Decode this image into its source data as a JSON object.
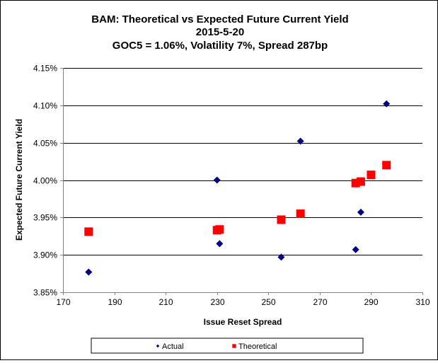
{
  "chart_data": {
    "type": "scatter",
    "title_lines": [
      "BAM: Theoretical vs Expected Future Current Yield",
      "2015-5-20",
      "GOC5 = 1.06%, Volatility 7%, Spread 287bp"
    ],
    "xlabel": "Issue Reset Spread",
    "ylabel": "Expected Future Current Yield",
    "xlim": [
      170,
      310
    ],
    "ylim": [
      3.85,
      4.15
    ],
    "x_ticks": [
      170,
      190,
      210,
      230,
      250,
      270,
      290,
      310
    ],
    "x_tick_labels": [
      "170",
      "190",
      "210",
      "230",
      "250",
      "270",
      "290",
      "310"
    ],
    "y_ticks": [
      3.85,
      3.9,
      3.95,
      4.0,
      4.05,
      4.1,
      4.15
    ],
    "y_tick_labels": [
      "3.85%",
      "3.90%",
      "3.95%",
      "4.00%",
      "4.05%",
      "4.10%",
      "4.15%"
    ],
    "grid": "horizontal",
    "legend_position": "bottom",
    "series": [
      {
        "name": "Actual",
        "color": "#000080",
        "marker": "diamond",
        "x": [
          180,
          230,
          231,
          255,
          262.5,
          284,
          286,
          296
        ],
        "y": [
          3.877,
          4.0,
          3.915,
          3.897,
          4.052,
          3.907,
          3.957,
          4.102
        ]
      },
      {
        "name": "Theoretical",
        "color": "#FF0000",
        "marker": "square",
        "x": [
          180,
          230,
          231,
          255,
          262.5,
          284,
          286,
          290,
          296
        ],
        "y": [
          3.931,
          3.933,
          3.934,
          3.947,
          3.955,
          3.996,
          3.998,
          4.007,
          4.02
        ]
      }
    ]
  }
}
